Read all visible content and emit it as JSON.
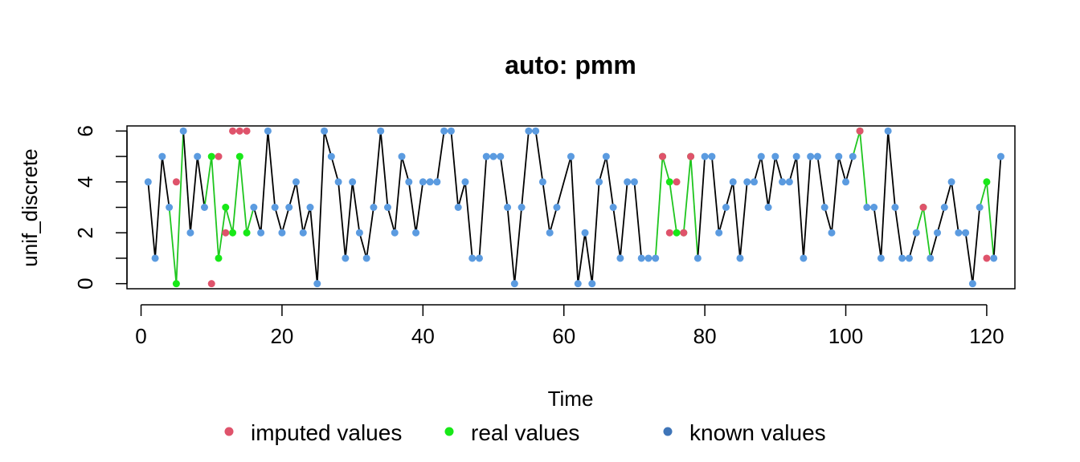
{
  "chart_data": {
    "type": "line",
    "title": "auto: pmm",
    "xlabel": "Time",
    "ylabel": "unif_discrete",
    "xlim": [
      -2,
      124
    ],
    "ylim": [
      -0.2,
      6.2
    ],
    "x_ticks": [
      0,
      20,
      40,
      60,
      80,
      100,
      120
    ],
    "y_ticks": [
      0,
      2,
      4,
      6
    ],
    "x_tick_labels": [
      "0",
      "20",
      "40",
      "60",
      "80",
      "100",
      "120"
    ],
    "y_tick_labels": [
      "0",
      "2",
      "4",
      "6"
    ],
    "grid": false,
    "legend_position": "bottom",
    "colors": {
      "imputed": "#DF536B",
      "real": "#18E818",
      "real_line": "#1FC61F",
      "known": "#5B9BE0",
      "known_legend": "#3F75B8",
      "line": "#000000"
    },
    "legend": [
      {
        "label": "imputed values",
        "color": "#DF536B"
      },
      {
        "label": "real values",
        "color": "#18E818"
      },
      {
        "label": "known values",
        "color": "#3F75B8"
      }
    ],
    "series": [
      {
        "name": "known values",
        "x": [
          1,
          2,
          3,
          4,
          6,
          7,
          8,
          9,
          16,
          17,
          18,
          19,
          20,
          21,
          22,
          23,
          24,
          25,
          26,
          27,
          28,
          29,
          30,
          31,
          32,
          33,
          34,
          35,
          36,
          37,
          38,
          39,
          40,
          41,
          42,
          43,
          44,
          45,
          46,
          47,
          48,
          49,
          50,
          51,
          52,
          53,
          54,
          55,
          56,
          57,
          58,
          59,
          61,
          62,
          63,
          64,
          65,
          66,
          67,
          68,
          69,
          70,
          71,
          72,
          73,
          79,
          80,
          81,
          82,
          83,
          84,
          85,
          86,
          87,
          88,
          89,
          90,
          91,
          92,
          93,
          94,
          95,
          96,
          97,
          98,
          99,
          100,
          101,
          103,
          104,
          105,
          106,
          107,
          108,
          109,
          110,
          112,
          113,
          114,
          115,
          116,
          117,
          118,
          119,
          121,
          122
        ],
        "values": [
          4,
          1,
          5,
          3,
          6,
          2,
          5,
          3,
          3,
          2,
          6,
          3,
          2,
          3,
          4,
          2,
          3,
          0,
          6,
          5,
          4,
          1,
          4,
          2,
          1,
          3,
          6,
          3,
          2,
          5,
          4,
          2,
          4,
          4,
          4,
          6,
          6,
          3,
          4,
          1,
          1,
          5,
          5,
          5,
          3,
          0,
          3,
          6,
          6,
          4,
          2,
          3,
          5,
          0,
          2,
          0,
          4,
          5,
          3,
          1,
          4,
          4,
          1,
          1,
          1,
          1,
          5,
          5,
          2,
          3,
          4,
          1,
          4,
          4,
          5,
          3,
          5,
          4,
          4,
          5,
          1,
          5,
          5,
          3,
          2,
          5,
          4,
          5,
          3,
          3,
          1,
          6,
          3,
          1,
          1,
          2,
          1,
          2,
          3,
          4,
          2,
          2,
          0,
          3,
          1,
          5
        ]
      },
      {
        "name": "real values",
        "x": [
          5,
          10,
          11,
          12,
          13,
          14,
          15,
          74,
          75,
          76,
          77,
          78,
          102,
          111,
          120
        ],
        "values": [
          0,
          5,
          1,
          3,
          2,
          5,
          2,
          5,
          4,
          2,
          2,
          5,
          6,
          3,
          4
        ]
      },
      {
        "name": "imputed values",
        "x": [
          5,
          10,
          11,
          12,
          13,
          14,
          15,
          74,
          75,
          76,
          77,
          78,
          102,
          111,
          120
        ],
        "values": [
          4,
          0,
          5,
          2,
          6,
          6,
          6,
          5,
          2,
          4,
          2,
          5,
          6,
          3,
          1
        ]
      }
    ]
  }
}
